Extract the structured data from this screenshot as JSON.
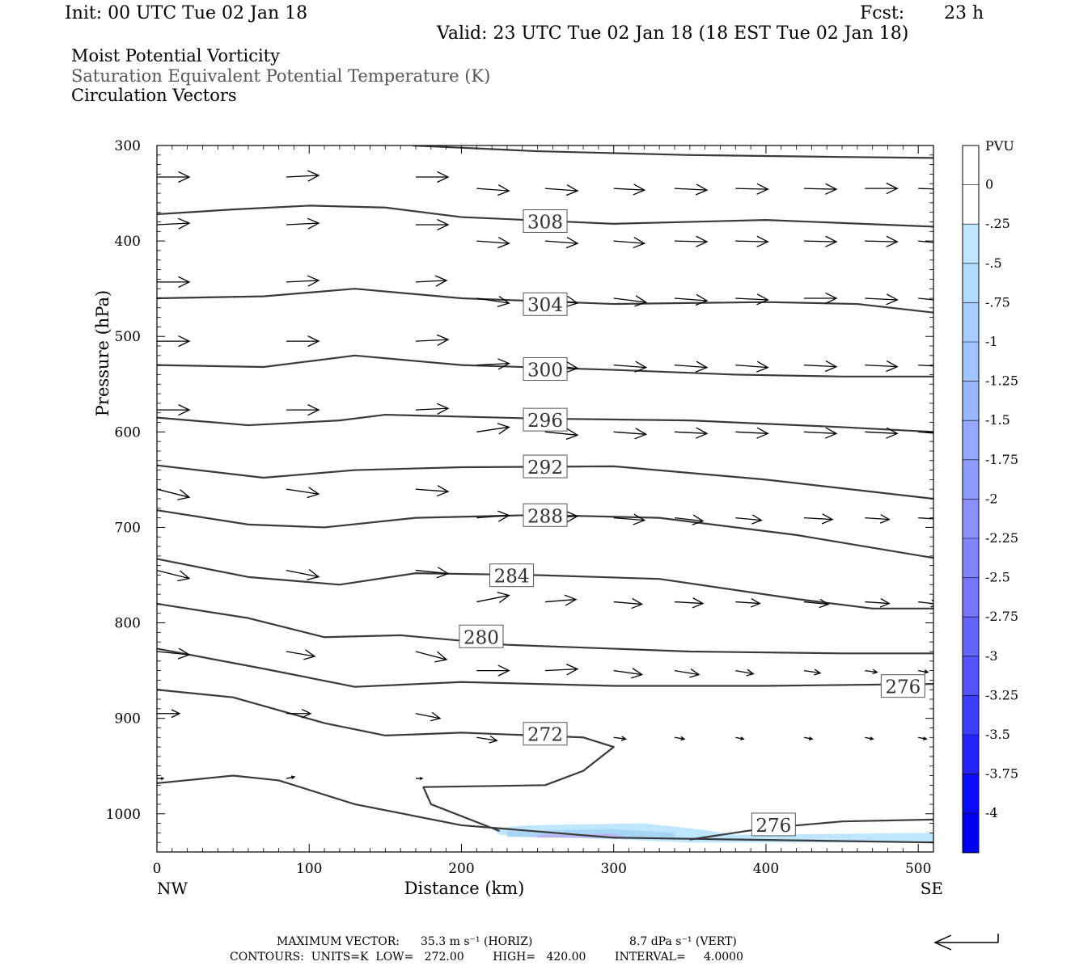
{
  "header": {
    "init": "Init: 00 UTC Tue 02 Jan 18",
    "fcst_label": "Fcst:",
    "fcst_value": "23 h",
    "valid": "Valid: 23 UTC Tue 02 Jan 18 (18 EST Tue 02 Jan 18)",
    "fields": [
      "Moist Potential Vorticity",
      "Saturation Equivalent Potential Temperature (K)",
      "Circulation Vectors"
    ]
  },
  "footer": {
    "max_vector_label": "MAXIMUM VECTOR:",
    "max_vector_horiz": "35.3 m s⁻¹ (HORIZ)",
    "max_vector_vert": "8.7 dPa s⁻¹ (VERT)",
    "contours": "CONTOURS:  UNITS=K  LOW=   272.00        HIGH=   420.00        INTERVAL=     4.0000"
  },
  "colors": {
    "contour": "#3a3a3a",
    "pv_light": "#bfe6ff",
    "pv_mid": "#a8d4f6",
    "pv_purple": "#b9b4f0"
  },
  "chart_data": {
    "type": "cross-section",
    "xlabel": "Distance (km)",
    "ylabel": "Pressure (hPa)",
    "xlim": [
      0,
      510
    ],
    "ylim": [
      300,
      1040
    ],
    "y_log": false,
    "x_ticks": [
      0,
      100,
      200,
      300,
      400,
      500
    ],
    "y_ticks": [
      300,
      400,
      500,
      600,
      700,
      800,
      900,
      1000
    ],
    "x_end_labels": {
      "left": "NW",
      "right": "SE"
    },
    "colorbar": {
      "title": "PVU",
      "labels": [
        "0",
        "-.25",
        "-.5",
        "-.75",
        "-1",
        "-1.25",
        "-1.5",
        "-1.75",
        "-2",
        "-2.25",
        "-2.5",
        "-2.75",
        "-3",
        "-3.25",
        "-3.5",
        "-3.75",
        "-4"
      ],
      "colors": [
        "#ffffff",
        "#ffffff",
        "#bfe6ff",
        "#b0daff",
        "#a6cdff",
        "#a0c2ff",
        "#9bb5ff",
        "#96a8ff",
        "#8f9cff",
        "#8a90ff",
        "#8283ff",
        "#7575ff",
        "#6565ff",
        "#5252ff",
        "#3d3dff",
        "#2424ff",
        "#0a0aff",
        "#0000f0"
      ]
    },
    "contours": [
      {
        "value": 308,
        "label": "308",
        "label_at": [
          255,
          380
        ],
        "points": [
          [
            0,
            372
          ],
          [
            50,
            367
          ],
          [
            100,
            363
          ],
          [
            150,
            365
          ],
          [
            200,
            375
          ],
          [
            300,
            382
          ],
          [
            400,
            378
          ],
          [
            510,
            385
          ]
        ]
      },
      {
        "value": 312,
        "label": "",
        "points": [
          [
            168,
            300
          ],
          [
            250,
            306
          ],
          [
            350,
            310
          ],
          [
            450,
            312
          ],
          [
            510,
            313
          ]
        ]
      },
      {
        "value": 304,
        "label": "304",
        "label_at": [
          255,
          467
        ],
        "points": [
          [
            0,
            460
          ],
          [
            70,
            458
          ],
          [
            130,
            450
          ],
          [
            200,
            460
          ],
          [
            300,
            466
          ],
          [
            400,
            464
          ],
          [
            460,
            466
          ],
          [
            510,
            475
          ]
        ]
      },
      {
        "value": 300,
        "label": "300",
        "label_at": [
          255,
          535
        ],
        "points": [
          [
            0,
            530
          ],
          [
            70,
            532
          ],
          [
            130,
            520
          ],
          [
            200,
            530
          ],
          [
            300,
            535
          ],
          [
            380,
            540
          ],
          [
            450,
            542
          ],
          [
            510,
            542
          ]
        ]
      },
      {
        "value": 296,
        "label": "296",
        "label_at": [
          255,
          588
        ],
        "points": [
          [
            0,
            585
          ],
          [
            60,
            593
          ],
          [
            120,
            588
          ],
          [
            150,
            582
          ],
          [
            250,
            586
          ],
          [
            350,
            588
          ],
          [
            450,
            595
          ],
          [
            510,
            600
          ]
        ]
      },
      {
        "value": 292,
        "label": "292",
        "label_at": [
          255,
          637
        ],
        "points": [
          [
            0,
            635
          ],
          [
            70,
            648
          ],
          [
            130,
            640
          ],
          [
            200,
            637
          ],
          [
            300,
            636
          ],
          [
            400,
            650
          ],
          [
            510,
            670
          ]
        ]
      },
      {
        "value": 288,
        "label": "288",
        "label_at": [
          255,
          688
        ],
        "points": [
          [
            0,
            682
          ],
          [
            60,
            697
          ],
          [
            110,
            700
          ],
          [
            170,
            690
          ],
          [
            250,
            687
          ],
          [
            330,
            690
          ],
          [
            420,
            708
          ],
          [
            510,
            732
          ]
        ]
      },
      {
        "value": 284,
        "label": "284",
        "label_at": [
          233,
          751
        ],
        "points": [
          [
            0,
            733
          ],
          [
            60,
            752
          ],
          [
            120,
            760
          ],
          [
            170,
            748
          ],
          [
            250,
            750
          ],
          [
            330,
            754
          ],
          [
            420,
            775
          ],
          [
            470,
            785
          ],
          [
            510,
            785
          ]
        ]
      },
      {
        "value": 280,
        "label": "280",
        "label_at": [
          213,
          815
        ],
        "points": [
          [
            0,
            780
          ],
          [
            60,
            795
          ],
          [
            110,
            815
          ],
          [
            160,
            813
          ],
          [
            230,
            823
          ],
          [
            350,
            830
          ],
          [
            450,
            832
          ],
          [
            510,
            832
          ]
        ]
      },
      {
        "value": 276,
        "label": "276",
        "label_at": [
          490,
          867
        ],
        "points": [
          [
            0,
            827
          ],
          [
            70,
            848
          ],
          [
            130,
            867
          ],
          [
            200,
            862
          ],
          [
            300,
            866
          ],
          [
            400,
            866
          ],
          [
            510,
            864
          ]
        ]
      },
      {
        "value": 272,
        "label": "272",
        "label_at": [
          255,
          917
        ],
        "points": [
          [
            0,
            870
          ],
          [
            50,
            878
          ],
          [
            110,
            905
          ],
          [
            150,
            918
          ],
          [
            200,
            915
          ],
          [
            280,
            920
          ],
          [
            300,
            930
          ],
          [
            280,
            955
          ],
          [
            255,
            970
          ],
          [
            175,
            972
          ],
          [
            180,
            990
          ],
          [
            225,
            1018
          ]
        ]
      },
      {
        "value": 276,
        "label": "276",
        "label_at": [
          405,
          1012
        ],
        "points": [
          [
            350,
            1027
          ],
          [
            400,
            1015
          ],
          [
            450,
            1008
          ],
          [
            510,
            1006
          ]
        ]
      },
      {
        "value": 268,
        "label": "",
        "points": [
          [
            0,
            968
          ],
          [
            50,
            960
          ],
          [
            80,
            965
          ],
          [
            130,
            990
          ],
          [
            200,
            1012
          ],
          [
            300,
            1025
          ],
          [
            510,
            1030
          ]
        ]
      }
    ],
    "pv_shading": [
      {
        "level": "-.25",
        "color": "#bfe6ff",
        "points": [
          [
            220,
            1015
          ],
          [
            245,
            1012
          ],
          [
            320,
            1010
          ],
          [
            360,
            1017
          ],
          [
            380,
            1022
          ],
          [
            510,
            1020
          ],
          [
            510,
            1030
          ],
          [
            350,
            1030
          ],
          [
            225,
            1022
          ]
        ]
      },
      {
        "level": "-.5",
        "color": "#a8d4f6",
        "points": [
          [
            230,
            1018
          ],
          [
            300,
            1016
          ],
          [
            340,
            1020
          ],
          [
            340,
            1027
          ],
          [
            230,
            1024
          ]
        ]
      },
      {
        "level": "-.75",
        "color": "#b9b4f0",
        "points": [
          [
            250,
            1022
          ],
          [
            300,
            1021
          ],
          [
            310,
            1025
          ],
          [
            250,
            1025
          ]
        ]
      }
    ],
    "vectors": [
      {
        "row": 333,
        "x": [
          0,
          85,
          170
        ],
        "v": [
          [
            40,
            0
          ],
          [
            40,
            -2
          ],
          [
            40,
            0
          ]
        ]
      },
      {
        "row": 345,
        "x": [
          210,
          255,
          300,
          340,
          380,
          425,
          465,
          500
        ],
        "v": [
          [
            40,
            3
          ],
          [
            40,
            3
          ],
          [
            38,
            2
          ],
          [
            40,
            2
          ],
          [
            40,
            1
          ],
          [
            40,
            1
          ],
          [
            40,
            0
          ],
          [
            30,
            1
          ]
        ]
      },
      {
        "row": 383,
        "x": [
          0,
          85,
          170
        ],
        "v": [
          [
            40,
            -2
          ],
          [
            40,
            -2
          ],
          [
            40,
            0
          ]
        ]
      },
      {
        "row": 400,
        "x": [
          210,
          255,
          300,
          340,
          380,
          425,
          465,
          500
        ],
        "v": [
          [
            40,
            3
          ],
          [
            40,
            3
          ],
          [
            38,
            3
          ],
          [
            40,
            1
          ],
          [
            40,
            1
          ],
          [
            40,
            1
          ],
          [
            40,
            1
          ],
          [
            30,
            3
          ]
        ]
      },
      {
        "row": 443,
        "x": [
          0,
          85,
          170
        ],
        "v": [
          [
            40,
            0
          ],
          [
            40,
            -2
          ],
          [
            38,
            -2
          ]
        ]
      },
      {
        "row": 460,
        "x": [
          210,
          255,
          300,
          340,
          380,
          425,
          465,
          500
        ],
        "v": [
          [
            40,
            6
          ],
          [
            40,
            6
          ],
          [
            40,
            5
          ],
          [
            40,
            3
          ],
          [
            40,
            2
          ],
          [
            40,
            0
          ],
          [
            40,
            2
          ],
          [
            30,
            3
          ]
        ]
      },
      {
        "row": 505,
        "x": [
          0,
          85,
          170
        ],
        "v": [
          [
            40,
            0
          ],
          [
            40,
            0
          ],
          [
            40,
            -2
          ]
        ]
      },
      {
        "row": 530,
        "x": [
          210,
          255,
          300,
          340,
          380,
          425,
          465,
          500
        ],
        "v": [
          [
            40,
            -2
          ],
          [
            40,
            4
          ],
          [
            40,
            3
          ],
          [
            40,
            3
          ],
          [
            40,
            3
          ],
          [
            40,
            2
          ],
          [
            40,
            2
          ],
          [
            35,
            2
          ]
        ]
      },
      {
        "row": 577,
        "x": [
          0,
          85,
          170
        ],
        "v": [
          [
            40,
            0
          ],
          [
            40,
            0
          ],
          [
            40,
            -2
          ]
        ]
      },
      {
        "row": 600,
        "x": [
          210,
          255,
          300,
          340,
          380,
          425,
          465,
          500
        ],
        "v": [
          [
            40,
            -6
          ],
          [
            40,
            4
          ],
          [
            40,
            3
          ],
          [
            40,
            2
          ],
          [
            40,
            2
          ],
          [
            40,
            2
          ],
          [
            40,
            2
          ],
          [
            38,
            3
          ]
        ]
      },
      {
        "row": 660,
        "x": [
          0,
          85,
          170
        ],
        "v": [
          [
            40,
            10
          ],
          [
            40,
            6
          ],
          [
            40,
            3
          ]
        ]
      },
      {
        "row": 690,
        "x": [
          210,
          255,
          300,
          340,
          380,
          425,
          465,
          500
        ],
        "v": [
          [
            40,
            -3
          ],
          [
            40,
            -2
          ],
          [
            38,
            3
          ],
          [
            35,
            4
          ],
          [
            32,
            3
          ],
          [
            35,
            2
          ],
          [
            30,
            2
          ],
          [
            30,
            2
          ]
        ]
      },
      {
        "row": 745,
        "x": [
          0,
          85,
          170
        ],
        "v": [
          [
            40,
            10
          ],
          [
            40,
            8
          ],
          [
            40,
            4
          ]
        ]
      },
      {
        "row": 778,
        "x": [
          210,
          255,
          300,
          340,
          380,
          425,
          465,
          500
        ],
        "v": [
          [
            40,
            -8
          ],
          [
            38,
            -3
          ],
          [
            35,
            3
          ],
          [
            35,
            2
          ],
          [
            30,
            2
          ],
          [
            30,
            3
          ],
          [
            30,
            2
          ],
          [
            25,
            3
          ]
        ]
      },
      {
        "row": 830,
        "x": [
          0,
          85,
          170
        ],
        "v": [
          [
            40,
            4
          ],
          [
            35,
            6
          ],
          [
            38,
            10
          ]
        ]
      },
      {
        "row": 850,
        "x": [
          210,
          255,
          300,
          340,
          380,
          425,
          465,
          500
        ],
        "v": [
          [
            40,
            0
          ],
          [
            40,
            -2
          ],
          [
            35,
            5
          ],
          [
            30,
            5
          ],
          [
            22,
            4
          ],
          [
            20,
            3
          ],
          [
            15,
            2
          ],
          [
            12,
            2
          ]
        ]
      },
      {
        "row": 895,
        "x": [
          0,
          85,
          170
        ],
        "v": [
          [
            28,
            0
          ],
          [
            30,
            0
          ],
          [
            30,
            6
          ]
        ]
      },
      {
        "row": 920,
        "x": [
          210,
          255,
          300,
          340,
          380,
          425,
          465,
          500
        ],
        "v": [
          [
            25,
            4
          ],
          [
            20,
            2
          ],
          [
            15,
            2
          ],
          [
            12,
            2
          ],
          [
            10,
            2
          ],
          [
            10,
            2
          ],
          [
            10,
            2
          ],
          [
            10,
            2
          ]
        ]
      },
      {
        "row": 963,
        "x": [
          0,
          85,
          170
        ],
        "v": [
          [
            8,
            0
          ],
          [
            10,
            -2
          ],
          [
            8,
            0
          ]
        ]
      }
    ]
  }
}
